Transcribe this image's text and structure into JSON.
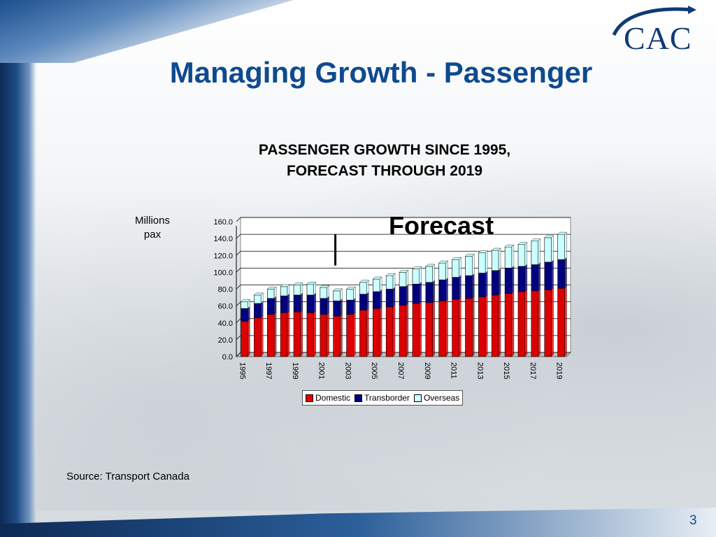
{
  "slide": {
    "title": "Managing Growth - Passenger",
    "logo_text": "CAC",
    "source": "Source: Transport Canada",
    "page_number": "3",
    "y_unit_line1": "Millions",
    "y_unit_line2": "pax",
    "forecast_label": "Forecast"
  },
  "colors": {
    "domestic": "#dd0000",
    "transborder": "#000080",
    "overseas": "#ccffff",
    "title": "#0f4a8f"
  },
  "chart_data": {
    "type": "bar",
    "stacked": true,
    "title_line1": "PASSENGER GROWTH SINCE 1995,",
    "title_line2": "FORECAST THROUGH 2019",
    "ylabel": "Millions pax",
    "ylim": [
      0,
      160
    ],
    "yticks": [
      "0.0",
      "20.0",
      "40.0",
      "60.0",
      "80.0",
      "100.0",
      "120.0",
      "140.0",
      "160.0"
    ],
    "grid": true,
    "legend_position": "bottom",
    "forecast_start": 2002,
    "categories": [
      "1995",
      "1996",
      "1997",
      "1998",
      "1999",
      "2000",
      "2001",
      "2002",
      "2003",
      "2004",
      "2005",
      "2006",
      "2007",
      "2008",
      "2009",
      "2010",
      "2011",
      "2012",
      "2013",
      "2014",
      "2015",
      "2016",
      "2017",
      "2018",
      "2019"
    ],
    "x_tick_labels": [
      "1995",
      "1997",
      "1999",
      "2001",
      "2003",
      "2005",
      "2007",
      "2009",
      "2011",
      "2013",
      "2015",
      "2017",
      "2019"
    ],
    "series": [
      {
        "name": "Domestic",
        "values": [
          42,
          46,
          50,
          52,
          53,
          52,
          50,
          48,
          50,
          55,
          57,
          59,
          61,
          63,
          64,
          66,
          68,
          69,
          71,
          73,
          75,
          77,
          78,
          79,
          81
        ]
      },
      {
        "name": "Transborder",
        "values": [
          15,
          17,
          19,
          20,
          20,
          21,
          19,
          18,
          17,
          19,
          20,
          21,
          22,
          23,
          24,
          25,
          26,
          27,
          28,
          29,
          30,
          30,
          31,
          33,
          34
        ]
      },
      {
        "name": "Overseas",
        "values": [
          8,
          10,
          11,
          11,
          12,
          13,
          13,
          12,
          13,
          14,
          15,
          16,
          17,
          18,
          19,
          20,
          21,
          23,
          24,
          24,
          25,
          26,
          28,
          29,
          30
        ]
      }
    ]
  }
}
